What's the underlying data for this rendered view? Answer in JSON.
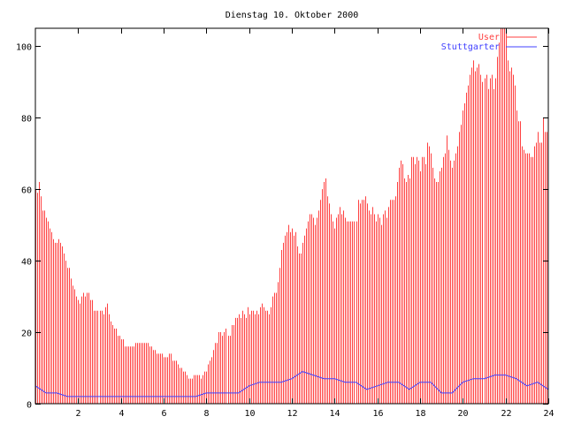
{
  "chart_data": {
    "type": "bar",
    "title": "Dienstag 10. Oktober 2000",
    "xlabel": "",
    "ylabel": "",
    "xlim": [
      0,
      24
    ],
    "ylim": [
      0,
      105
    ],
    "x_ticks": [
      2,
      4,
      6,
      8,
      10,
      12,
      14,
      16,
      18,
      20,
      22,
      24
    ],
    "y_ticks": [
      0,
      20,
      40,
      60,
      80,
      100
    ],
    "legend_position": "top-right",
    "colors": {
      "User": "#ff4040",
      "Stuttgarter": "#4040ff",
      "axes": "#000000"
    },
    "series": [
      {
        "name": "User",
        "style": "impulses",
        "x_step_minutes": 5,
        "values": [
          60,
          59,
          62,
          58,
          54,
          54,
          52,
          51,
          49,
          48,
          46,
          45,
          45,
          46,
          45,
          44,
          42,
          40,
          38,
          38,
          35,
          33,
          32,
          30,
          29,
          28,
          30,
          31,
          30,
          31,
          31,
          29,
          29,
          26,
          26,
          26,
          26,
          26,
          25,
          27,
          28,
          25,
          23,
          22,
          21,
          21,
          19,
          19,
          18,
          18,
          16,
          16,
          16,
          16,
          16,
          16,
          17,
          17,
          17,
          17,
          17,
          17,
          17,
          17,
          16,
          16,
          15,
          15,
          14,
          14,
          14,
          14,
          13,
          13,
          13,
          14,
          14,
          12,
          12,
          12,
          11,
          10,
          10,
          9,
          9,
          8,
          7,
          7,
          7,
          8,
          8,
          8,
          8,
          7,
          8,
          9,
          9,
          11,
          12,
          13,
          15,
          17,
          17,
          20,
          20,
          19,
          20,
          21,
          19,
          19,
          22,
          22,
          24,
          24,
          25,
          24,
          26,
          25,
          24,
          27,
          25,
          26,
          26,
          25,
          26,
          25,
          27,
          28,
          27,
          26,
          26,
          25,
          27,
          30,
          31,
          31,
          34,
          38,
          43,
          45,
          47,
          48,
          50,
          48,
          49,
          47,
          48,
          44,
          42,
          42,
          45,
          47,
          49,
          51,
          53,
          53,
          52,
          50,
          52,
          54,
          57,
          60,
          62,
          63,
          58,
          56,
          53,
          51,
          49,
          52,
          53,
          55,
          53,
          54,
          52,
          51,
          51,
          51,
          51,
          51,
          51,
          57,
          56,
          57,
          57,
          58,
          56,
          54,
          53,
          55,
          53,
          51,
          53,
          52,
          50,
          53,
          54,
          52,
          55,
          57,
          57,
          57,
          58,
          62,
          66,
          68,
          67,
          63,
          62,
          64,
          63,
          69,
          69,
          67,
          69,
          68,
          65,
          69,
          69,
          67,
          73,
          72,
          70,
          66,
          63,
          62,
          62,
          65,
          66,
          69,
          70,
          75,
          71,
          68,
          66,
          68,
          70,
          72,
          76,
          78,
          82,
          84,
          87,
          89,
          92,
          94,
          96,
          93,
          94,
          95,
          92,
          90,
          91,
          92,
          88,
          91,
          92,
          88,
          91,
          97,
          101,
          105,
          105,
          105,
          105,
          96,
          93,
          94,
          92,
          89,
          82,
          79,
          79,
          72,
          71,
          70,
          70,
          70,
          69,
          69,
          72,
          73,
          76,
          73,
          73,
          80,
          76,
          76
        ]
      },
      {
        "name": "Stuttgarter",
        "style": "line",
        "x_step_minutes": 30,
        "values": [
          5,
          3,
          3,
          2,
          2,
          2,
          2,
          2,
          2,
          2,
          2,
          2,
          2,
          2,
          2,
          2,
          3,
          3,
          3,
          3,
          5,
          6,
          6,
          6,
          7,
          9,
          8,
          7,
          7,
          6,
          6,
          4,
          5,
          6,
          6,
          4,
          6,
          6,
          3,
          3,
          6,
          7,
          7,
          8,
          8,
          7,
          5,
          6,
          4
        ]
      }
    ]
  }
}
